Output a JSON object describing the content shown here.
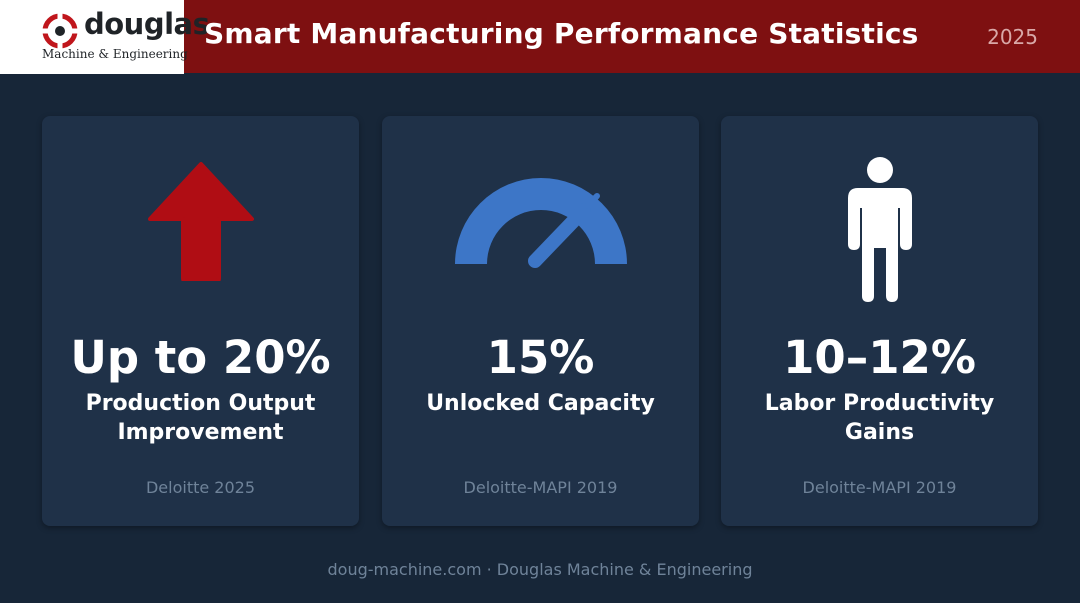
{
  "header": {
    "logo_word": "douglas",
    "logo_sub": "Machine & Engineering",
    "title": "Smart Manufacturing Performance Statistics",
    "year": "2025"
  },
  "colors": {
    "header_bg": "#7e1011",
    "page_bg": "#172638",
    "card_bg": "#1f3148",
    "arrow_red": "#b00d14",
    "gauge_blue": "#3d76c7",
    "muted_text": "#6f8399"
  },
  "stats": [
    {
      "icon": "up-arrow-icon",
      "value": "Up to 20%",
      "label": "Production Output Improvement",
      "source": "Deloitte 2025"
    },
    {
      "icon": "speedometer-icon",
      "value": "15%",
      "label": "Unlocked Capacity",
      "source": "Deloitte-MAPI 2019"
    },
    {
      "icon": "person-icon",
      "value": "10–12%",
      "label": "Labor Productivity Gains",
      "source": "Deloitte-MAPI 2019"
    }
  ],
  "footer": {
    "text": "doug-machine.com · Douglas Machine & Engineering"
  }
}
